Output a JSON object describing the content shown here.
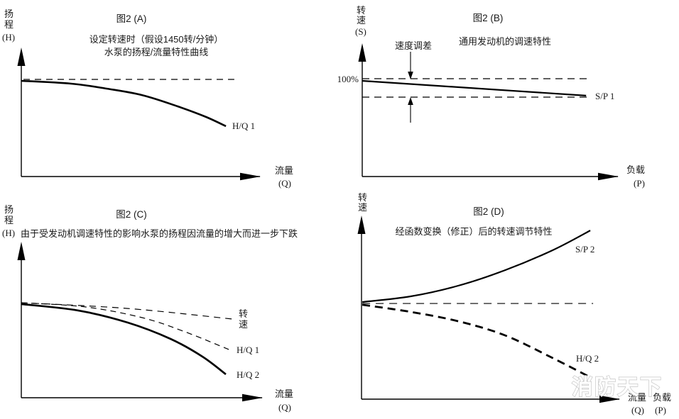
{
  "page": {
    "background": "#ffffff",
    "ink_color": "#000000",
    "watermark": {
      "text": "消防天下",
      "color": "#c6c6c6"
    }
  },
  "chart_data": [
    {
      "id": "A",
      "type": "line",
      "title": "图2 (A)",
      "subtitle_lines": [
        "设定转速时（假设1450转/分钟）",
        "水泵的扬程/流量特性曲线"
      ],
      "y_axis": {
        "label_lines": [
          "扬",
          "程",
          "(H)"
        ],
        "ticks": []
      },
      "x_axis": {
        "labels": [
          {
            "lines": [
              "流量",
              "(Q)"
            ]
          }
        ]
      },
      "legend": "none",
      "grid": false,
      "series": [
        {
          "name": "rated-head-reference",
          "label": "",
          "style": "dashed",
          "stroke_width": 1.3,
          "dash": [
            9,
            7
          ],
          "x": [
            0.009,
            0.89
          ],
          "y": [
            0.757,
            0.757
          ]
        },
        {
          "name": "pump-head-flow-curve",
          "label": "H/Q 1",
          "style": "solid",
          "stroke_width": 2.6,
          "dash": null,
          "x": [
            0,
            0.208,
            0.356,
            0.504,
            0.653,
            0.772,
            0.855
          ],
          "y": [
            0.746,
            0.724,
            0.685,
            0.635,
            0.547,
            0.464,
            0.392
          ]
        }
      ],
      "annotations": []
    },
    {
      "id": "B",
      "type": "line",
      "title": "图2 (B)",
      "subtitle_lines": [
        "通用发动机的调速特性"
      ],
      "y_axis": {
        "label_lines": [
          "转",
          "速",
          "(S)"
        ],
        "ticks": [
          {
            "label": "100%",
            "y": 0.738
          }
        ]
      },
      "x_axis": {
        "labels": [
          {
            "lines": [
              "负载",
              "(P)"
            ]
          }
        ]
      },
      "legend": "none",
      "grid": false,
      "series": [
        {
          "name": "no-load-speed-reference",
          "label": "",
          "style": "dashed",
          "stroke_width": 1.3,
          "dash": [
            10,
            7
          ],
          "x": [
            0,
            0.889
          ],
          "y": [
            0.738,
            0.738
          ]
        },
        {
          "name": "full-load-speed-reference",
          "label": "",
          "style": "dashed",
          "stroke_width": 1.3,
          "dash": [
            10,
            7
          ],
          "x": [
            0,
            0.889
          ],
          "y": [
            0.599,
            0.599
          ]
        },
        {
          "name": "engine-governing-line",
          "label": "S/P 1",
          "style": "solid",
          "stroke_width": 2.2,
          "dash": null,
          "x": [
            0,
            0.873
          ],
          "y": [
            0.722,
            0.61
          ]
        }
      ],
      "annotations": [
        {
          "name": "speed-droop",
          "text": "速度调差"
        }
      ]
    },
    {
      "id": "C",
      "type": "line",
      "title": "图2 (C)",
      "subtitle_lines": [
        "由于受发动机调速特性的影响水泵的扬程因流量的增大而进一步下跌"
      ],
      "y_axis": {
        "label_lines": [
          "扬",
          "程",
          "(H)"
        ],
        "ticks": []
      },
      "x_axis": {
        "labels": [
          {
            "lines": [
              "流量",
              "(Q)"
            ]
          }
        ]
      },
      "legend": "none",
      "grid": false,
      "series": [
        {
          "name": "speed-line",
          "label_lines": [
            "转",
            "速"
          ],
          "style": "dashed",
          "stroke_width": 1.2,
          "dash": [
            9,
            7
          ],
          "x": [
            0,
            0.441,
            0.874
          ],
          "y": [
            0.612,
            0.575,
            0.507
          ]
        },
        {
          "name": "hq1-curve",
          "label": "H/Q 1",
          "style": "dashed",
          "stroke_width": 1.2,
          "dash": [
            8,
            6
          ],
          "x": [
            0,
            0.265,
            0.5,
            0.677,
            0.859
          ],
          "y": [
            0.612,
            0.585,
            0.516,
            0.425,
            0.311
          ]
        },
        {
          "name": "hq2-curve",
          "label": "H/Q 2",
          "style": "solid",
          "stroke_width": 2.7,
          "dash": null,
          "x": [
            0,
            0.235,
            0.441,
            0.618,
            0.75,
            0.847
          ],
          "y": [
            0.603,
            0.562,
            0.484,
            0.379,
            0.265,
            0.151
          ]
        }
      ],
      "annotations": []
    },
    {
      "id": "D",
      "type": "line",
      "title": "图2 (D)",
      "subtitle_lines": [
        "经函数变换（修正）后的转速调节特性"
      ],
      "y_axis": {
        "label_lines": [
          "转",
          "速"
        ],
        "ticks": []
      },
      "x_axis": {
        "labels": [
          {
            "lines": [
              "流量",
              "(Q)"
            ]
          },
          {
            "lines": [
              "负载",
              "(P)"
            ]
          }
        ]
      },
      "legend": "none",
      "grid": false,
      "series": [
        {
          "name": "set-speed-reference",
          "label": "",
          "style": "dashed",
          "stroke_width": 1.1,
          "dash": [
            11,
            8
          ],
          "x": [
            0.003,
            0.896
          ],
          "y": [
            0.523,
            0.523
          ]
        },
        {
          "name": "corrected-speed-curve",
          "label": "S/P 2",
          "style": "solid",
          "stroke_width": 2.2,
          "dash": null,
          "x": [
            0.003,
            0.19,
            0.374,
            0.555,
            0.739,
            0.885
          ],
          "y": [
            0.531,
            0.562,
            0.62,
            0.705,
            0.814,
            0.922
          ]
        },
        {
          "name": "hq2-curve",
          "label": "H/Q 2",
          "style": "dashed",
          "stroke_width": 2.8,
          "dash": [
            11,
            7
          ],
          "x": [
            0.003,
            0.19,
            0.374,
            0.555,
            0.739,
            0.89
          ],
          "y": [
            0.516,
            0.477,
            0.426,
            0.349,
            0.225,
            0.116
          ]
        }
      ],
      "annotations": []
    }
  ]
}
